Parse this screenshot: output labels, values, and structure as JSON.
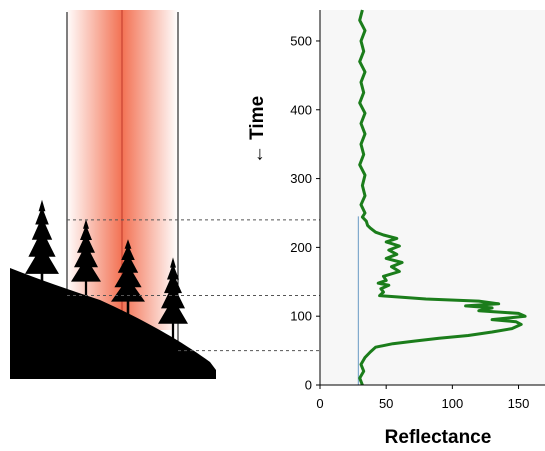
{
  "colors": {
    "beam": "#f26a4a",
    "beam_center_line": "#c0392b",
    "ground": "#000000",
    "signal": "#1b7d1b",
    "baseline": "#7fa8cc",
    "plot_background": "#f7f7f7"
  },
  "chart_data": {
    "type": "line",
    "xlabel": "Reflectance",
    "ylabel": "← Time",
    "xlim": [
      0,
      170
    ],
    "ylim": [
      0,
      545
    ],
    "x_ticks": [
      0,
      50,
      100,
      150
    ],
    "y_ticks": [
      0,
      100,
      200,
      300,
      400,
      500
    ],
    "baseline_reflectance": 29,
    "guide_times": [
      240,
      130,
      50
    ],
    "series": [
      {
        "values": [
          [
            32,
            0
          ],
          [
            30,
            10
          ],
          [
            33,
            20
          ],
          [
            31,
            30
          ],
          [
            34,
            40
          ],
          [
            38,
            48
          ],
          [
            42,
            55
          ],
          [
            55,
            60
          ],
          [
            72,
            64
          ],
          [
            90,
            68
          ],
          [
            112,
            72
          ],
          [
            130,
            77
          ],
          [
            145,
            82
          ],
          [
            152,
            88
          ],
          [
            148,
            92
          ],
          [
            130,
            95
          ],
          [
            155,
            100
          ],
          [
            150,
            104
          ],
          [
            120,
            108
          ],
          [
            130,
            112
          ],
          [
            110,
            115
          ],
          [
            135,
            118
          ],
          [
            120,
            122
          ],
          [
            80,
            125
          ],
          [
            58,
            128
          ],
          [
            45,
            130
          ],
          [
            48,
            135
          ],
          [
            46,
            140
          ],
          [
            52,
            145
          ],
          [
            44,
            148
          ],
          [
            50,
            152
          ],
          [
            48,
            158
          ],
          [
            60,
            165
          ],
          [
            54,
            172
          ],
          [
            62,
            178
          ],
          [
            50,
            184
          ],
          [
            58,
            190
          ],
          [
            52,
            196
          ],
          [
            60,
            202
          ],
          [
            50,
            208
          ],
          [
            58,
            213
          ],
          [
            48,
            218
          ],
          [
            42,
            222
          ],
          [
            38,
            228
          ],
          [
            36,
            232
          ],
          [
            35,
            238
          ],
          [
            32,
            244
          ],
          [
            34,
            250
          ],
          [
            31,
            262
          ],
          [
            34,
            275
          ],
          [
            32,
            290
          ],
          [
            34,
            305
          ],
          [
            30,
            320
          ],
          [
            33,
            335
          ],
          [
            31,
            350
          ],
          [
            34,
            365
          ],
          [
            31,
            380
          ],
          [
            34,
            395
          ],
          [
            30,
            410
          ],
          [
            33,
            425
          ],
          [
            31,
            440
          ],
          [
            34,
            455
          ],
          [
            30,
            470
          ],
          [
            33,
            485
          ],
          [
            31,
            500
          ],
          [
            34,
            515
          ],
          [
            30,
            530
          ],
          [
            32,
            545
          ]
        ]
      }
    ]
  }
}
